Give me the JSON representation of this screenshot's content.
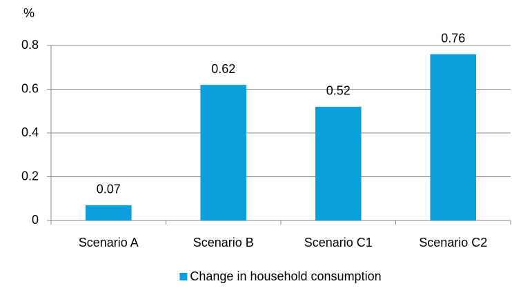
{
  "chart_data": {
    "type": "bar",
    "y_label": "%",
    "categories": [
      "Scenario A",
      "Scenario B",
      "Scenario C1",
      "Scenario C2"
    ],
    "series": [
      {
        "name": "Change in household consumption",
        "color": "#0ba0dc",
        "values": [
          0.07,
          0.62,
          0.52,
          0.76
        ]
      }
    ],
    "ylim": [
      0,
      0.8
    ],
    "yticks": [
      0,
      0.2,
      0.4,
      0.6,
      0.8
    ],
    "grid": true,
    "legend": "bottom"
  }
}
